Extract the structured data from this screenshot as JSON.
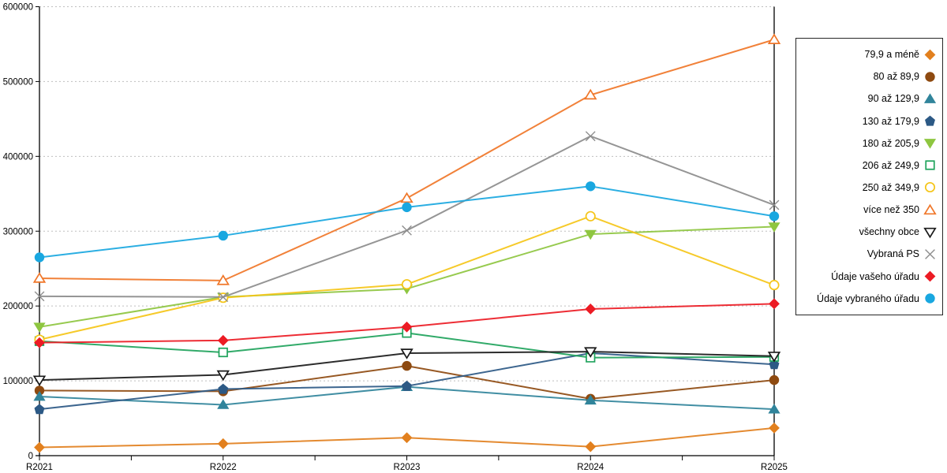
{
  "chart_data": {
    "type": "line",
    "title": "",
    "xlabel": "",
    "ylabel": "",
    "categories": [
      "R2021",
      "R2022",
      "R2023",
      "R2024",
      "R2025"
    ],
    "ylim": [
      0,
      600000
    ],
    "ytick_step": 100000,
    "ytick_labels": [
      "0",
      "100000",
      "200000",
      "300000",
      "400000",
      "500000",
      "600000"
    ],
    "grid": "horizontal-dashed",
    "legend_position": "right",
    "series": [
      {
        "name": "79,9 a méně",
        "color": "#E2801E",
        "marker": "diamond",
        "fill": "filled",
        "values": [
          11000,
          16000,
          24000,
          12000,
          37000
        ]
      },
      {
        "name": "80 až 89,9",
        "color": "#8E4A10",
        "marker": "circle",
        "fill": "filled",
        "values": [
          87000,
          86000,
          120000,
          76000,
          101000
        ]
      },
      {
        "name": "90 až 129,9",
        "color": "#31849B",
        "marker": "triangle-up",
        "fill": "filled",
        "values": [
          79000,
          68000,
          92000,
          74000,
          62000
        ]
      },
      {
        "name": "130 až 179,9",
        "color": "#2C5985",
        "marker": "pentagon",
        "fill": "filled",
        "values": [
          62000,
          89000,
          93000,
          137000,
          122000
        ]
      },
      {
        "name": "180 až 205,9",
        "color": "#8EC640",
        "marker": "triangle-down",
        "fill": "filled",
        "values": [
          172000,
          212000,
          223000,
          296000,
          306000
        ]
      },
      {
        "name": "206 až 249,9",
        "color": "#1FA35C",
        "marker": "square",
        "fill": "open",
        "values": [
          153000,
          138000,
          164000,
          131000,
          132000
        ]
      },
      {
        "name": "250 až 349,9",
        "color": "#F5C518",
        "marker": "circle",
        "fill": "open",
        "values": [
          155000,
          211000,
          229000,
          320000,
          228000
        ]
      },
      {
        "name": "více než 350",
        "color": "#F07628",
        "marker": "triangle-up",
        "fill": "open",
        "values": [
          237000,
          234000,
          344000,
          482000,
          556000
        ]
      },
      {
        "name": "všechny obce",
        "color": "#1A1A1A",
        "marker": "triangle-down",
        "fill": "open",
        "values": [
          101000,
          108000,
          137000,
          139000,
          133000
        ]
      },
      {
        "name": "Vybraná PS",
        "color": "#8C8C8C",
        "marker": "x",
        "fill": "line",
        "values": [
          213000,
          212000,
          301000,
          427000,
          335000
        ]
      },
      {
        "name": "Údaje vašeho úřadu",
        "color": "#EC1B24",
        "marker": "diamond",
        "fill": "filled",
        "values": [
          151000,
          154000,
          172000,
          196000,
          203000
        ]
      },
      {
        "name": "Údaje vybraného úřadu",
        "color": "#19A7E0",
        "marker": "circle",
        "fill": "filled",
        "values": [
          265000,
          294000,
          332000,
          360000,
          320000
        ]
      }
    ]
  }
}
